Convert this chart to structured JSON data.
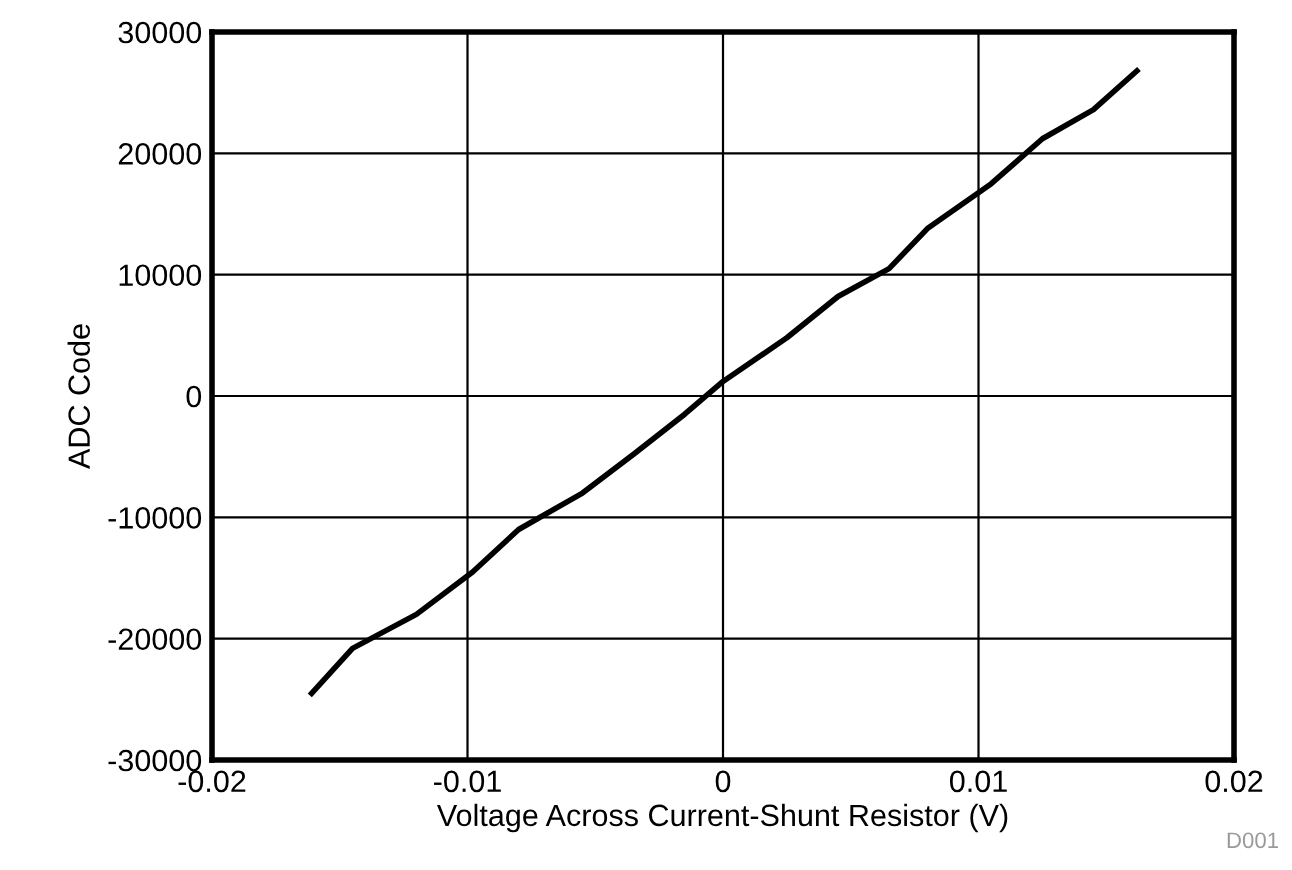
{
  "chart_data": {
    "type": "line",
    "xlabel": "Voltage Across Current-Shunt Resistor (V)",
    "ylabel": "ADC Code",
    "annotations": [
      "D001"
    ],
    "xlim": [
      -0.02,
      0.02
    ],
    "xticks": [
      -0.02,
      -0.01,
      0,
      0.01,
      0.02
    ],
    "ylim": [
      -30000,
      30000
    ],
    "yticks": [
      -30000,
      -20000,
      -10000,
      0,
      10000,
      20000,
      30000
    ],
    "grid": true,
    "series": [
      {
        "color": "#000000",
        "x": [
          -0.0161,
          -0.0145,
          -0.012,
          -0.0098,
          -0.008,
          -0.0055,
          -0.0035,
          -0.0015,
          0,
          0.0025,
          0.0045,
          0.0065,
          0.008,
          0.0105,
          0.0125,
          0.0145,
          0.0162
        ],
        "values": [
          -24500,
          -20800,
          -18000,
          -14500,
          -11000,
          -8000,
          -4800,
          -1500,
          1200,
          4800,
          8200,
          10500,
          13800,
          17500,
          21200,
          23600,
          26800
        ]
      }
    ]
  }
}
